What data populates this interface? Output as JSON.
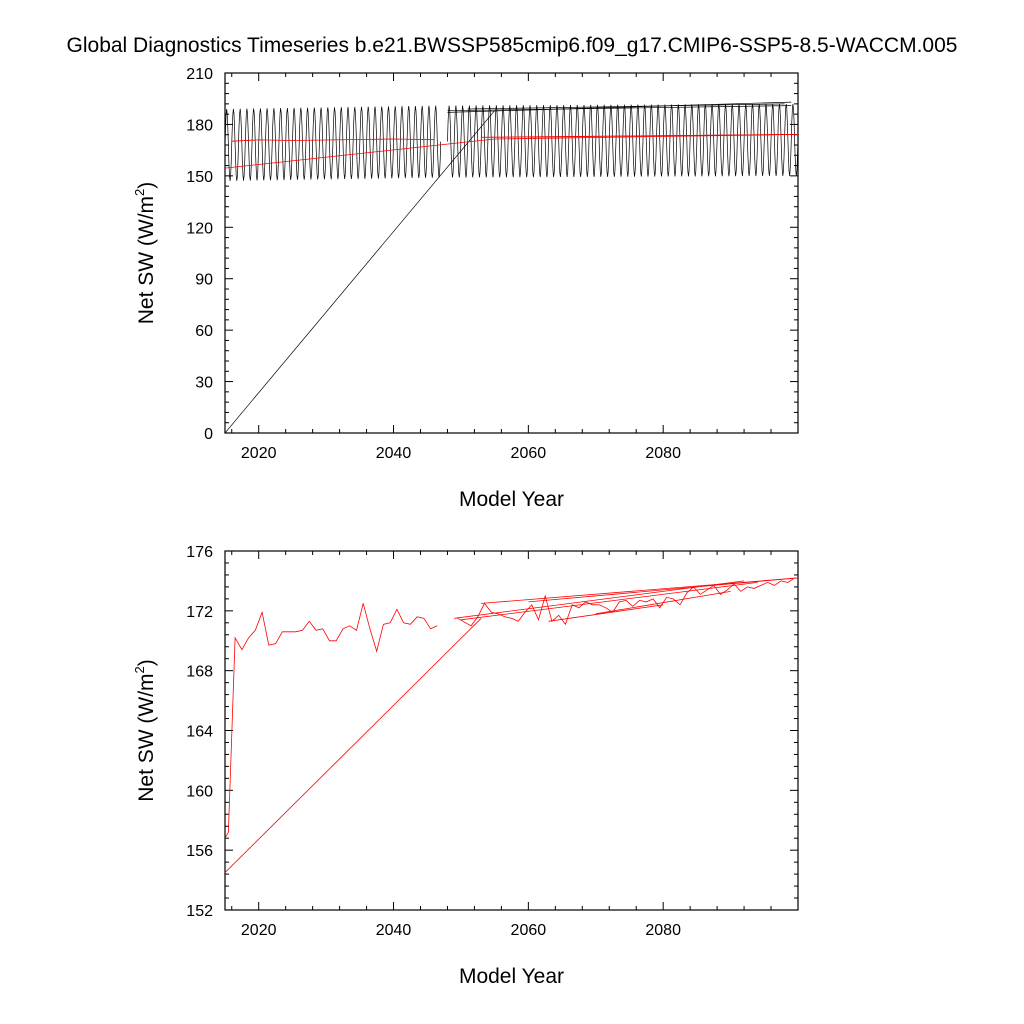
{
  "title": "Global Diagnostics Timeseries b.e21.BWSSP585cmip6.f09_g17.CMIP6-SSP5-8.5-WACCM.005",
  "chart_data": [
    {
      "type": "line",
      "xlabel": "Model Year",
      "ylabel_main": "Net SW (W/m",
      "ylabel_sup": "2",
      "ylabel_end": ")",
      "xlim": [
        2015,
        2100
      ],
      "ylim": [
        0,
        210
      ],
      "xticks": [
        2020,
        2040,
        2060,
        2080
      ],
      "yticks": [
        0,
        30,
        60,
        90,
        120,
        150,
        180,
        210
      ],
      "grid": false,
      "series": [
        {
          "color": "#000000",
          "style": "monthly seasonal oscillation",
          "amplitude": 21,
          "segments": [
            {
              "x_start": 2015.0,
              "x_end": 2015.0,
              "center_start": 0,
              "center_end": 0,
              "note": ""
            },
            {
              "x_start": 2015.0,
              "x_end": 2047.0,
              "center_start": 168,
              "center_end": 170
            },
            {
              "x_start": 2048.0,
              "x_end": 2100.0,
              "center_start": 170,
              "center_end": 171
            }
          ],
          "connector": {
            "x": [
              2015.0,
              2055.0
            ],
            "y": [
              0,
              188
            ]
          },
          "wrap_lines": [
            {
              "x": [
                2048,
                2099
              ],
              "y": [
                187,
                193
              ]
            },
            {
              "x": [
                2048,
                2099
              ],
              "y": [
                188,
                191
              ]
            },
            {
              "x": [
                2051,
                2098
              ],
              "y": [
                189,
                192
              ]
            }
          ]
        },
        {
          "color": "#ff0000",
          "x": [
            2015.0,
            2055.0,
            2100.0
          ],
          "y": [
            154.5,
            171.5,
            174.2
          ],
          "annual_early_x": [
            2016,
            2020,
            2025,
            2030,
            2035,
            2040,
            2046
          ],
          "annual_early_y": [
            170.2,
            171.0,
            170.6,
            170.9,
            171.2,
            171.5,
            171.1
          ],
          "wrap_lines": [
            {
              "x": [
                2053,
                2100
              ],
              "y": [
                172.5,
                174.2
              ]
            },
            {
              "x": [
                2060,
                2100
              ],
              "y": [
                172.6,
                174.2
              ]
            }
          ]
        }
      ]
    },
    {
      "type": "line",
      "xlabel": "Model Year",
      "ylabel_main": "Net SW (W/m",
      "ylabel_sup": "2",
      "ylabel_end": ")",
      "xlim": [
        2015,
        2100
      ],
      "ylim": [
        152,
        176
      ],
      "xticks": [
        2020,
        2040,
        2060,
        2080
      ],
      "yticks": [
        152,
        156,
        160,
        164,
        168,
        172,
        176
      ],
      "grid": false,
      "series": [
        {
          "color": "#ff0000",
          "x": [
            2015.0,
            2015.5,
            2016.5,
            2017.5,
            2018.5,
            2019.5,
            2020.5,
            2021.5,
            2022.5,
            2023.5,
            2024.5,
            2025.5,
            2026.5,
            2027.5,
            2028.5,
            2029.5,
            2030.5,
            2031.5,
            2032.5,
            2033.5,
            2034.5,
            2035.5,
            2036.5,
            2037.5,
            2038.5,
            2039.5,
            2040.5,
            2041.5,
            2042.5,
            2043.5,
            2044.5,
            2045.5,
            2046.5
          ],
          "y": [
            156.8,
            157.2,
            170.2,
            169.4,
            170.2,
            170.7,
            171.9,
            169.7,
            169.8,
            170.6,
            170.6,
            170.6,
            170.7,
            171.3,
            170.7,
            170.8,
            170.0,
            170.0,
            170.8,
            171.0,
            170.7,
            172.5,
            170.8,
            169.3,
            171.1,
            171.2,
            172.1,
            171.2,
            171.1,
            171.6,
            171.5,
            170.8,
            171.0
          ],
          "connector": {
            "x": [
              2015.0,
              2053.0
            ],
            "y": [
              154.5,
              171.5
            ]
          },
          "late_x": [
            2049.5,
            2051.5,
            2052.5,
            2053.5,
            2054.5,
            2055.5,
            2056.5,
            2057.5,
            2058.5,
            2059.5,
            2060.5,
            2061.5,
            2062.5,
            2063.5,
            2064.5,
            2065.5,
            2066.5,
            2067.5,
            2068.5,
            2069.5,
            2070.5,
            2071.5,
            2072.5,
            2073.5,
            2074.5,
            2075.5,
            2076.5,
            2077.5,
            2078.5,
            2079.5,
            2080.5,
            2081.5,
            2082.5,
            2083.5,
            2084.5,
            2085.5,
            2086.5,
            2087.5,
            2088.5,
            2089.5,
            2090.5,
            2091.5,
            2092.5,
            2093.5,
            2094.5,
            2095.5,
            2096.5,
            2097.5,
            2098.5,
            2099.5
          ],
          "late_y": [
            171.5,
            171.0,
            171.6,
            172.5,
            171.9,
            171.8,
            171.6,
            171.5,
            171.3,
            171.9,
            172.4,
            171.4,
            173.0,
            171.3,
            171.7,
            171.1,
            172.4,
            172.2,
            172.6,
            172.4,
            172.4,
            172.2,
            171.9,
            172.6,
            172.7,
            172.3,
            172.7,
            172.6,
            172.8,
            172.2,
            172.9,
            172.8,
            172.4,
            173.2,
            173.6,
            173.1,
            173.4,
            173.7,
            173.1,
            173.4,
            173.8,
            173.3,
            173.6,
            173.5,
            173.7,
            173.9,
            173.7,
            174.0,
            173.9,
            174.2
          ],
          "wrap_lines": [
            {
              "x": [
                2053,
                2100
              ],
              "y": [
                172.5,
                174.2
              ]
            },
            {
              "x": [
                2060,
                2100
              ],
              "y": [
                172.6,
                174.2
              ]
            },
            {
              "x": [
                2049,
                2092
              ],
              "y": [
                171.5,
                174.0
              ]
            },
            {
              "x": [
                2050,
                2094
              ],
              "y": [
                171.4,
                173.9
              ]
            },
            {
              "x": [
                2063,
                2080
              ],
              "y": [
                171.3,
                172.4
              ]
            },
            {
              "x": [
                2070,
                2090
              ],
              "y": [
                171.8,
                173.3
              ]
            }
          ]
        }
      ]
    }
  ]
}
